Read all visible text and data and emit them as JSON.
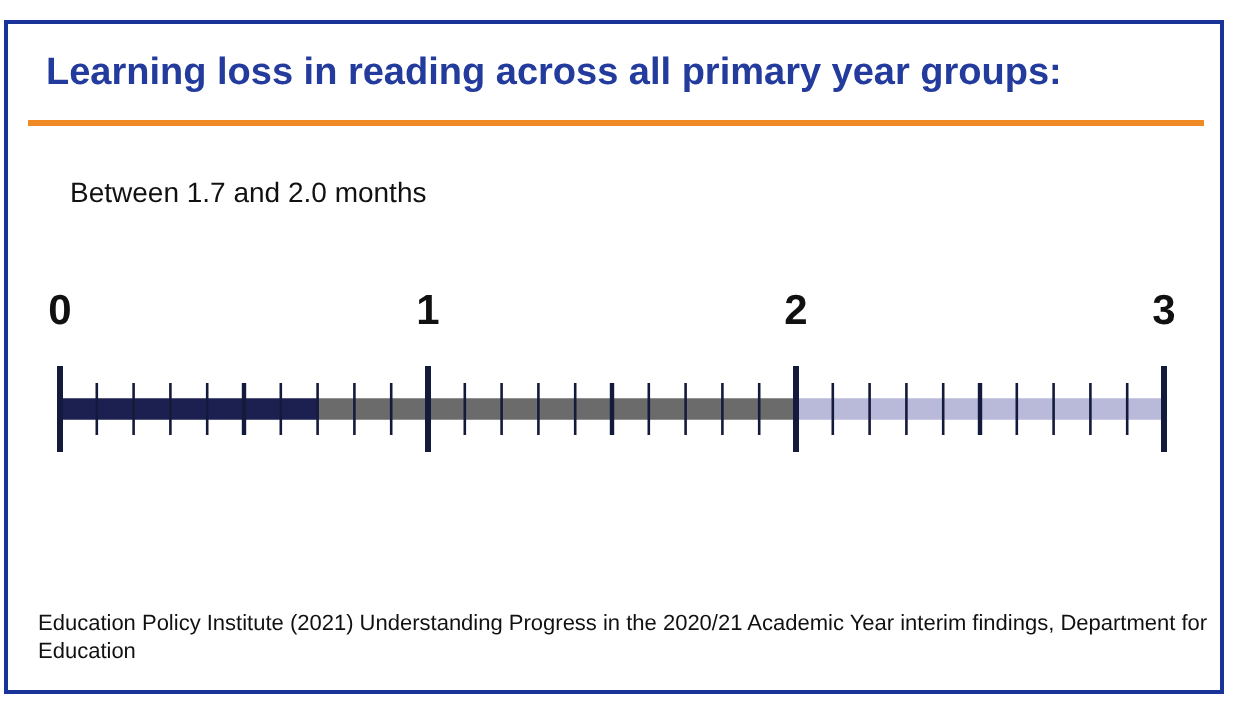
{
  "chart_data": {
    "type": "bar",
    "orientation": "horizontal",
    "stacked": true,
    "title": "Learning loss in reading across all primary year groups:",
    "subtitle": "Between 1.7 and 2.0 months",
    "categories": [
      null
    ],
    "series": [
      {
        "color": "#1c2050",
        "values": [
          0.7
        ]
      },
      {
        "color": "#6b6b6b",
        "values": [
          1.3
        ]
      },
      {
        "color": "#b9b9da",
        "values": [
          1.0
        ]
      }
    ],
    "xlim": [
      0,
      3
    ],
    "grid": "x",
    "xticks": [
      0,
      {
        "value": 0.1,
        "label": null
      },
      {
        "value": 0.2,
        "label": null
      },
      {
        "value": 0.3,
        "label": null
      },
      {
        "value": 0.4,
        "label": null
      },
      {
        "value": 0.5,
        "label": null
      },
      {
        "value": 0.6,
        "label": null
      },
      {
        "value": 0.7,
        "label": null
      },
      {
        "value": 0.8,
        "label": null
      },
      {
        "value": 0.9,
        "label": null
      },
      1,
      {
        "value": 1.1,
        "label": null
      },
      {
        "value": 1.2,
        "label": null
      },
      {
        "value": 1.3,
        "label": null
      },
      {
        "value": 1.4,
        "label": null
      },
      {
        "value": 1.5,
        "label": null
      },
      {
        "value": 1.6,
        "label": null
      },
      {
        "value": 1.7,
        "label": null
      },
      {
        "value": 1.8,
        "label": null
      },
      {
        "value": 1.9,
        "label": null
      },
      2,
      {
        "value": 2.1,
        "label": null
      },
      {
        "value": 2.2,
        "label": null
      },
      {
        "value": 2.3,
        "label": null
      },
      {
        "value": 2.4,
        "label": null
      },
      {
        "value": 2.5,
        "label": null
      },
      {
        "value": 2.6,
        "label": null
      },
      {
        "value": 2.7,
        "label": null
      },
      {
        "value": 2.8,
        "label": null
      },
      {
        "value": 2.9,
        "label": null
      },
      3
    ],
    "annotations": [
      "Education Policy Institute (2021) Understanding Progress in the 2020/21 Academic Year interim findings, Department for Education"
    ]
  }
}
